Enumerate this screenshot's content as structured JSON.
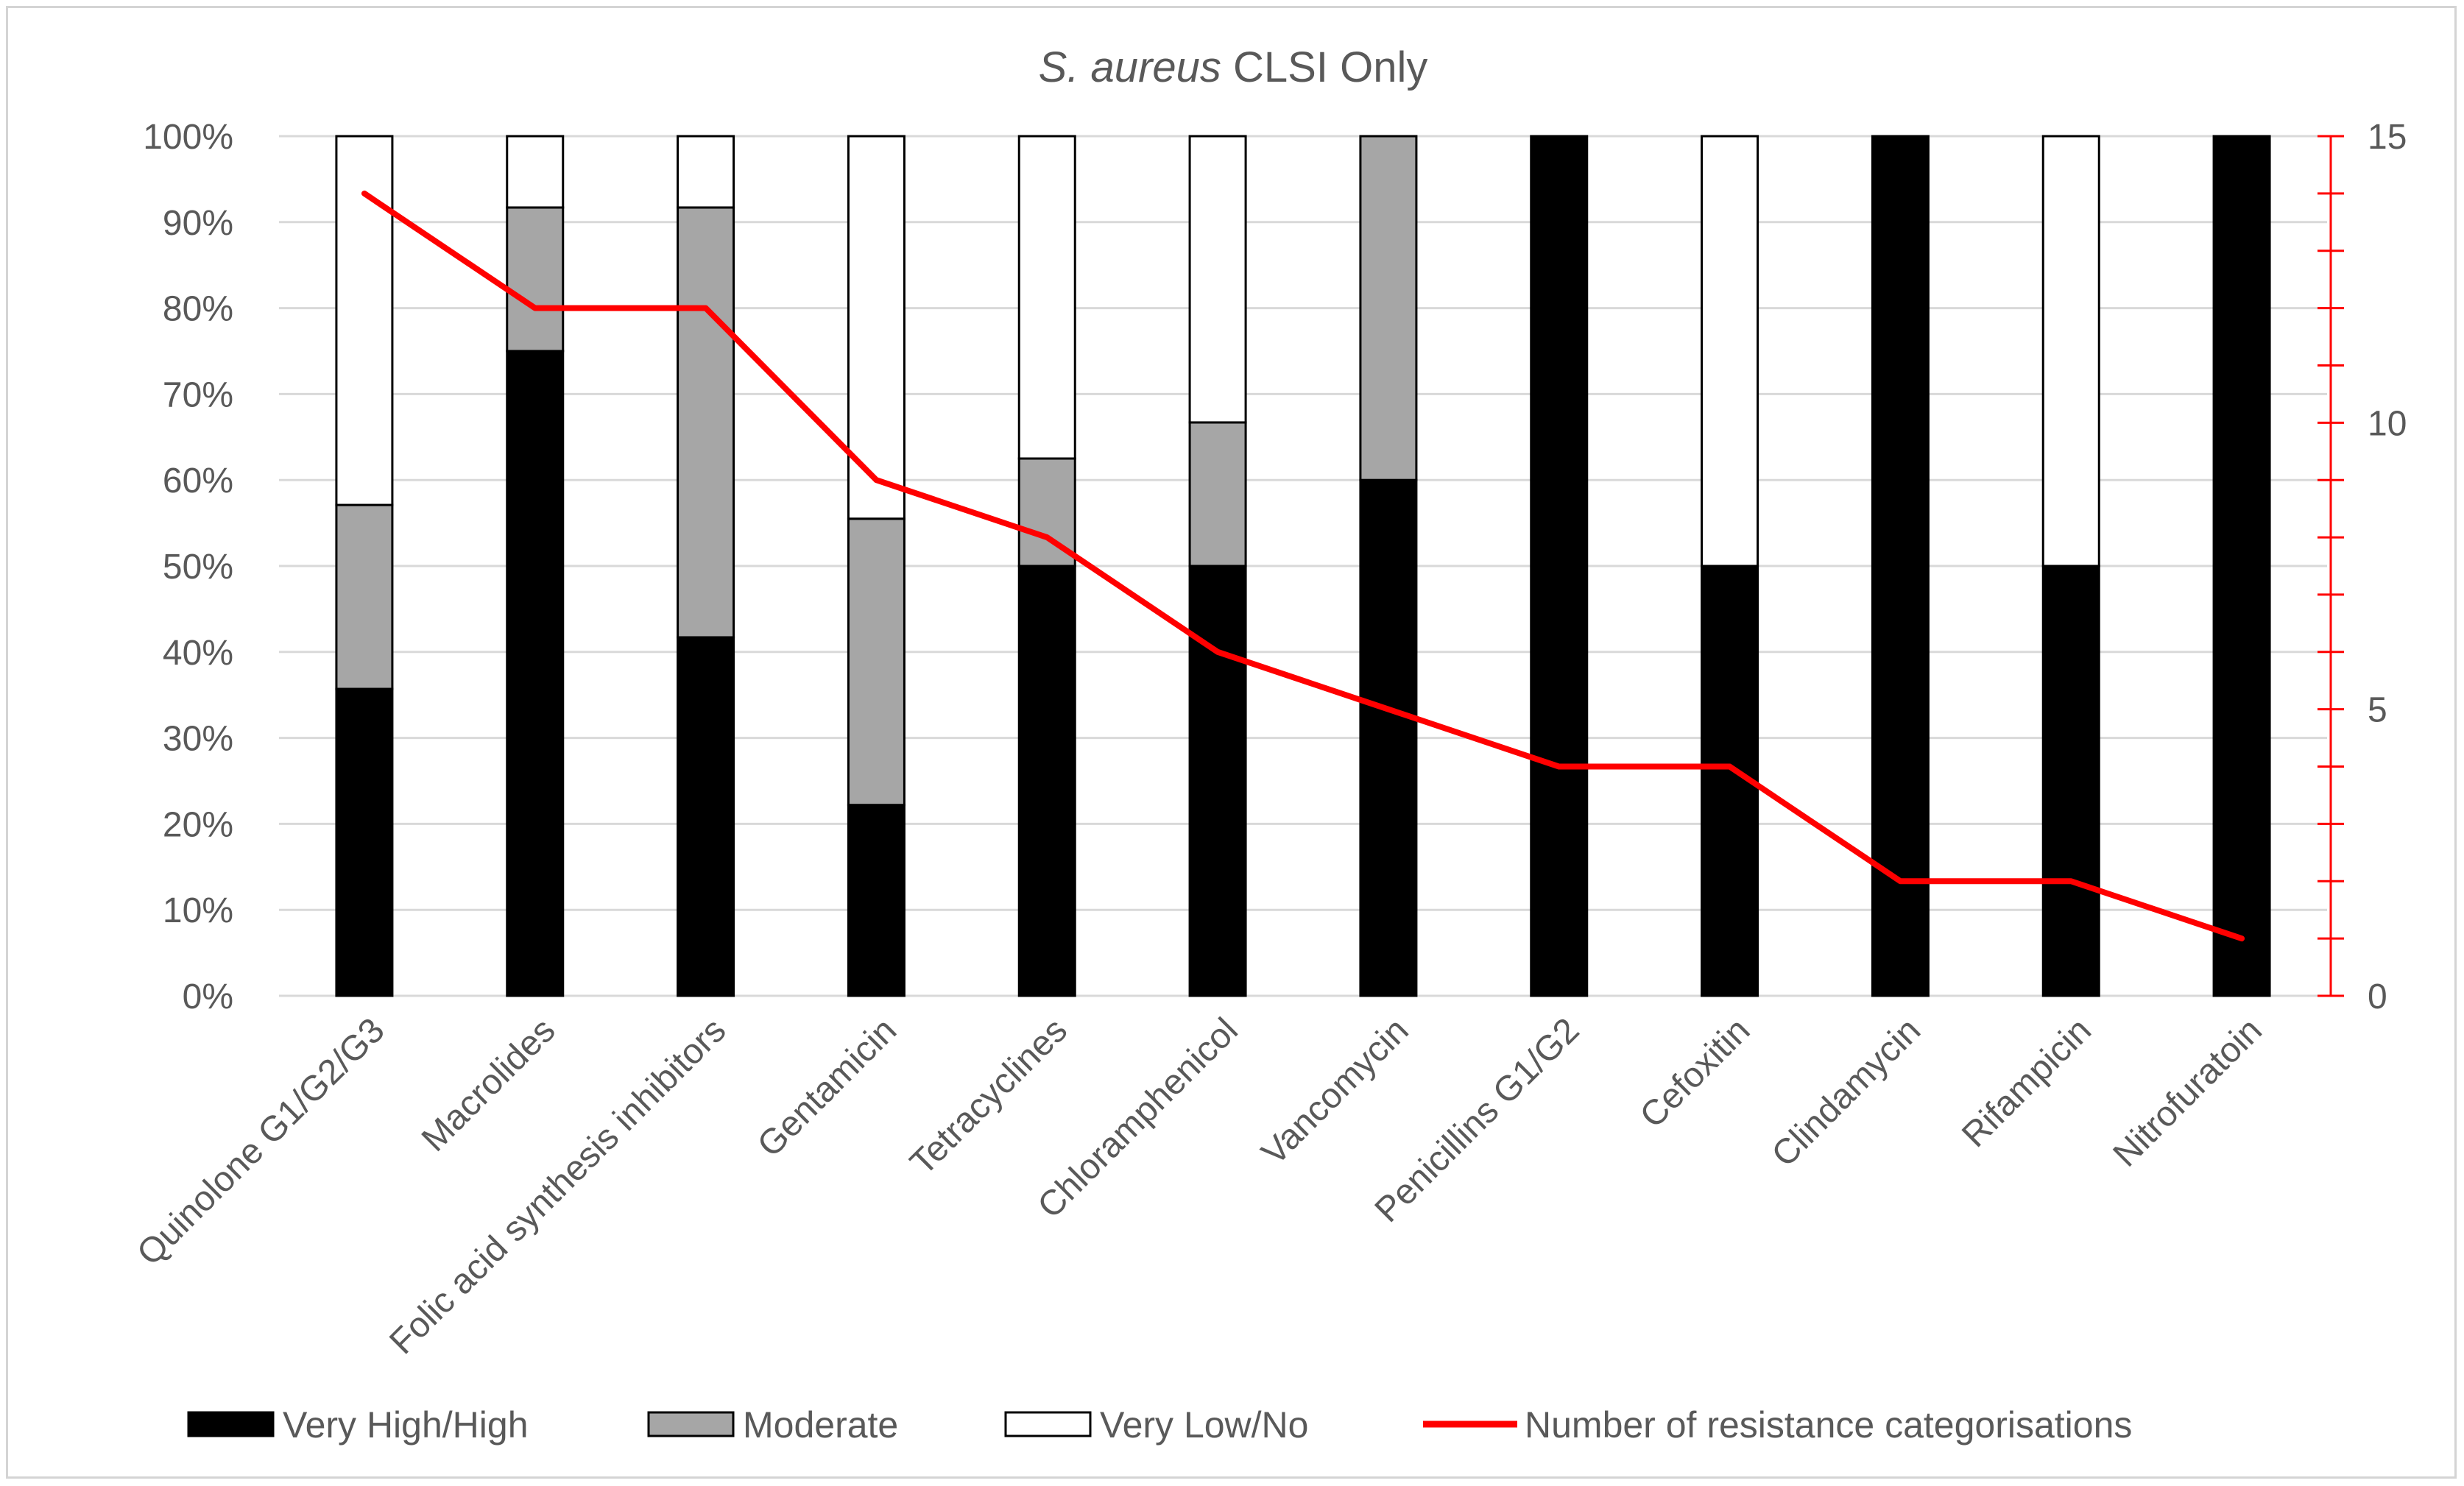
{
  "chart_data": {
    "type": "bar",
    "stacked": true,
    "normalized": true,
    "title_italic": "S. aureus",
    "title_rest": " CLSI Only",
    "categories": [
      "Quinolone G1/G2/G3",
      "Macrolides",
      "Folic acid synthesis inhibitors",
      "Gentamicin",
      "Tetracyclines",
      "Chloramphenicol",
      "Vancomycin",
      "Penicillins G1/G2",
      "Cefoxitin",
      "Clindamycin",
      "Rifampicin",
      "Nitrofuratoin"
    ],
    "series": [
      {
        "name": "Very High/High",
        "color": "#000000",
        "values": [
          35.7,
          75.0,
          41.7,
          22.2,
          50.0,
          50.0,
          60.0,
          100,
          50.0,
          100,
          50.0,
          100
        ]
      },
      {
        "name": "Moderate",
        "color": "#a6a6a6",
        "values": [
          21.4,
          16.7,
          50.0,
          33.3,
          12.5,
          16.7,
          40.0,
          0,
          0,
          0,
          0,
          0
        ]
      },
      {
        "name": "Very Low/No",
        "color": "#ffffff",
        "values": [
          42.9,
          8.3,
          8.3,
          44.5,
          37.5,
          33.3,
          0,
          0,
          50.0,
          0,
          50.0,
          0
        ]
      }
    ],
    "line_series": {
      "name": "Number of resistance categorisations",
      "color": "#ff0000",
      "axis": "secondary",
      "values": [
        14,
        12,
        12,
        9,
        8,
        6,
        5,
        4,
        4,
        2,
        2,
        1
      ]
    },
    "y_axis": {
      "ylim": [
        0,
        100
      ],
      "ticks": [
        "0%",
        "10%",
        "20%",
        "30%",
        "40%",
        "50%",
        "60%",
        "70%",
        "80%",
        "90%",
        "100%"
      ]
    },
    "y2_axis": {
      "ylim": [
        0,
        15
      ],
      "ticks": [
        "0",
        "5",
        "10",
        "15"
      ],
      "color": "#ff0000"
    },
    "grid": true,
    "legend_position": "bottom"
  }
}
